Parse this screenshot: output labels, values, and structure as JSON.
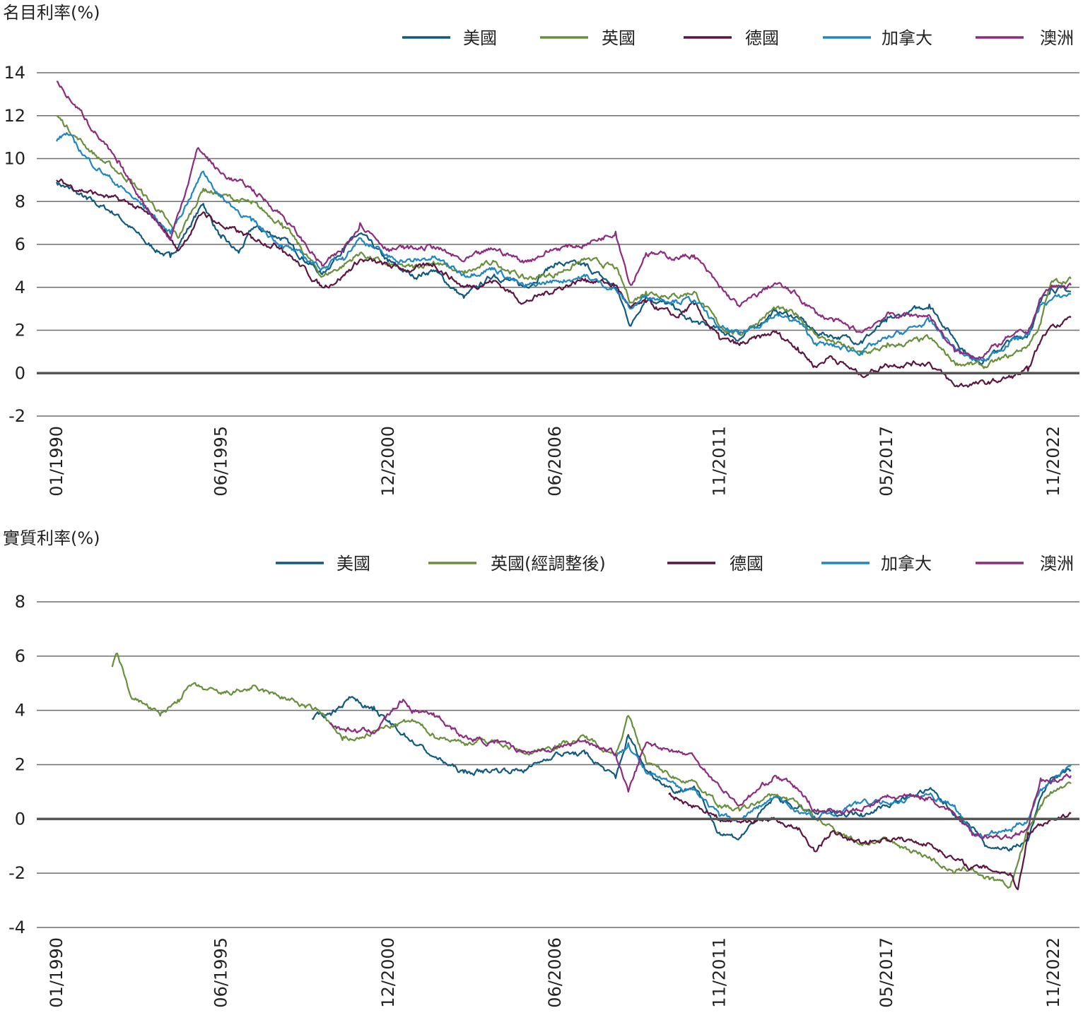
{
  "chart_data": [
    {
      "type": "line",
      "ylabel": "名目利率(%)",
      "ylim": [
        -2,
        14
      ],
      "yticks": [
        -2,
        0,
        2,
        4,
        6,
        8,
        10,
        12,
        14
      ],
      "xlim": [
        "1990-01",
        "2023-06"
      ],
      "xticks": [
        "01/1990",
        "06/1995",
        "12/2000",
        "06/2006",
        "11/2011",
        "05/2017",
        "11/2022"
      ],
      "grid": true,
      "legend_position": "top-right",
      "series": [
        {
          "name": "美國",
          "color": "#0f5a7e",
          "x": [
            "1990-01",
            "1990-06",
            "1991-01",
            "1992-01",
            "1993-01",
            "1993-10",
            "1994-11",
            "1995-06",
            "1996-01",
            "1996-07",
            "1997-06",
            "1998-10",
            "1999-06",
            "2000-01",
            "2000-12",
            "2001-10",
            "2002-06",
            "2003-06",
            "2004-06",
            "2005-06",
            "2006-06",
            "2007-06",
            "2008-06",
            "2008-12",
            "2009-06",
            "2010-06",
            "2010-10",
            "2011-11",
            "2012-07",
            "2013-09",
            "2014-06",
            "2015-01",
            "2016-07",
            "2017-05",
            "2018-10",
            "2019-08",
            "2020-03",
            "2020-08",
            "2021-06",
            "2022-01",
            "2022-06",
            "2022-10",
            "2023-06"
          ],
          "values": [
            8.9,
            8.6,
            8.1,
            7.4,
            6.0,
            5.4,
            7.9,
            6.3,
            5.6,
            6.8,
            6.3,
            4.6,
            5.8,
            6.5,
            5.2,
            4.5,
            4.8,
            3.5,
            4.6,
            4.0,
            5.1,
            5.0,
            4.0,
            2.2,
            3.6,
            3.0,
            2.5,
            2.0,
            1.6,
            2.9,
            2.6,
            1.9,
            1.5,
            2.4,
            3.2,
            1.6,
            0.7,
            0.6,
            1.5,
            1.8,
            3.3,
            4.0,
            3.8
          ]
        },
        {
          "name": "英國",
          "color": "#6a8f3c",
          "x": [
            "1990-01",
            "1990-09",
            "1991-06",
            "1992-06",
            "1993-06",
            "1994-01",
            "1994-11",
            "1995-06",
            "1996-06",
            "1997-06",
            "1998-10",
            "1999-06",
            "2000-01",
            "2000-12",
            "2001-10",
            "2002-06",
            "2003-06",
            "2004-06",
            "2005-06",
            "2006-06",
            "2007-06",
            "2008-06",
            "2008-12",
            "2009-06",
            "2010-06",
            "2011-01",
            "2011-11",
            "2012-07",
            "2013-09",
            "2014-06",
            "2015-01",
            "2016-07",
            "2017-05",
            "2018-10",
            "2019-08",
            "2020-03",
            "2020-08",
            "2021-06",
            "2022-01",
            "2022-06",
            "2022-10",
            "2023-06"
          ],
          "values": [
            12.0,
            11.0,
            10.0,
            9.0,
            7.5,
            6.3,
            8.6,
            8.3,
            7.9,
            7.0,
            4.5,
            5.0,
            5.6,
            5.0,
            4.9,
            5.2,
            4.6,
            5.2,
            4.4,
            4.6,
            5.3,
            4.9,
            3.3,
            3.8,
            3.6,
            3.8,
            2.2,
            1.8,
            3.0,
            2.7,
            1.8,
            0.9,
            1.2,
            1.6,
            0.5,
            0.4,
            0.3,
            0.8,
            1.3,
            2.3,
            4.2,
            4.4
          ]
        },
        {
          "name": "德國",
          "color": "#5c1540",
          "x": [
            "1990-01",
            "1990-07",
            "1991-06",
            "1992-06",
            "1993-06",
            "1994-01",
            "1994-11",
            "1995-06",
            "1996-06",
            "1997-06",
            "1998-10",
            "1999-06",
            "2000-01",
            "2000-12",
            "2001-10",
            "2002-06",
            "2003-06",
            "2004-06",
            "2005-06",
            "2006-06",
            "2007-06",
            "2008-06",
            "2008-12",
            "2009-06",
            "2010-06",
            "2011-01",
            "2011-11",
            "2012-07",
            "2013-09",
            "2014-06",
            "2015-01",
            "2015-07",
            "2016-07",
            "2017-05",
            "2018-10",
            "2019-08",
            "2020-03",
            "2020-08",
            "2021-06",
            "2022-01",
            "2022-06",
            "2022-10",
            "2023-06"
          ],
          "values": [
            9.0,
            8.7,
            8.3,
            7.9,
            7.0,
            5.7,
            7.5,
            6.9,
            6.3,
            5.9,
            4.0,
            4.5,
            5.3,
            5.0,
            4.8,
            5.1,
            4.0,
            4.3,
            3.3,
            3.9,
            4.4,
            4.1,
            3.0,
            3.3,
            2.6,
            3.2,
            1.6,
            1.3,
            1.9,
            1.2,
            0.3,
            0.8,
            -0.1,
            0.4,
            0.5,
            -0.6,
            -0.5,
            -0.5,
            -0.2,
            0.1,
            1.5,
            2.2,
            2.6
          ]
        },
        {
          "name": "加拿大",
          "color": "#1f86c0",
          "x": [
            "1990-01",
            "1990-05",
            "1991-01",
            "1992-01",
            "1993-01",
            "1993-10",
            "1994-11",
            "1995-06",
            "1996-06",
            "1997-06",
            "1998-10",
            "1999-06",
            "2000-01",
            "2000-12",
            "2001-10",
            "2002-06",
            "2003-06",
            "2004-06",
            "2005-06",
            "2006-06",
            "2007-06",
            "2008-06",
            "2008-12",
            "2009-06",
            "2010-06",
            "2011-01",
            "2011-11",
            "2012-07",
            "2013-09",
            "2014-06",
            "2015-01",
            "2016-07",
            "2017-05",
            "2018-10",
            "2019-08",
            "2020-03",
            "2020-08",
            "2021-06",
            "2022-01",
            "2022-06",
            "2022-10",
            "2023-06"
          ],
          "values": [
            10.8,
            11.2,
            10.0,
            8.8,
            7.6,
            6.5,
            9.4,
            8.2,
            7.1,
            6.0,
            4.9,
            5.4,
            6.3,
            5.4,
            5.2,
            5.4,
            4.6,
            4.9,
            4.0,
            4.3,
            4.5,
            3.9,
            3.0,
            3.6,
            3.4,
            3.4,
            2.1,
            1.8,
            2.7,
            2.4,
            1.4,
            1.0,
            1.6,
            2.4,
            1.2,
            0.6,
            0.6,
            1.5,
            1.8,
            3.2,
            3.4,
            3.7
          ]
        },
        {
          "name": "澳洲",
          "color": "#8d2b7e",
          "x": [
            "1990-01",
            "1990-06",
            "1991-01",
            "1992-01",
            "1993-01",
            "1993-10",
            "1994-09",
            "1995-06",
            "1996-06",
            "1997-06",
            "1998-10",
            "1999-06",
            "2000-01",
            "2000-12",
            "2001-10",
            "2002-06",
            "2003-06",
            "2004-06",
            "2005-06",
            "2006-06",
            "2007-06",
            "2008-06",
            "2008-12",
            "2009-06",
            "2010-06",
            "2011-01",
            "2011-11",
            "2012-07",
            "2013-09",
            "2014-06",
            "2015-01",
            "2016-07",
            "2017-05",
            "2018-10",
            "2019-08",
            "2020-03",
            "2020-08",
            "2021-06",
            "2022-01",
            "2022-06",
            "2022-10",
            "2023-06"
          ],
          "values": [
            13.6,
            12.8,
            11.8,
            9.8,
            7.7,
            6.2,
            10.5,
            9.3,
            8.6,
            7.4,
            5.0,
            5.7,
            7.0,
            5.8,
            5.8,
            5.9,
            5.2,
            5.8,
            5.2,
            5.8,
            6.0,
            6.6,
            4.1,
            5.6,
            5.4,
            5.5,
            4.0,
            3.1,
            4.2,
            3.6,
            2.8,
            1.9,
            2.7,
            2.7,
            1.0,
            0.8,
            0.9,
            1.7,
            1.9,
            3.5,
            4.0,
            4.1
          ]
        }
      ]
    },
    {
      "type": "line",
      "ylabel": "實質利率(%)",
      "ylim": [
        -4,
        8
      ],
      "yticks": [
        -4,
        -2,
        0,
        2,
        4,
        6,
        8
      ],
      "xlim": [
        "1990-01",
        "2023-06"
      ],
      "xticks": [
        "01/1990",
        "06/1995",
        "12/2000",
        "06/2006",
        "11/2011",
        "05/2017",
        "11/2022"
      ],
      "grid": true,
      "legend_position": "top-right",
      "series": [
        {
          "name": "美國",
          "color": "#0f5a7e",
          "x": [
            "1998-06",
            "1999-01",
            "1999-10",
            "2000-06",
            "2001-01",
            "2002-06",
            "2003-06",
            "2004-06",
            "2005-06",
            "2006-06",
            "2007-06",
            "2008-06",
            "2008-11",
            "2009-06",
            "2010-06",
            "2011-01",
            "2011-11",
            "2012-07",
            "2013-09",
            "2014-06",
            "2015-01",
            "2016-07",
            "2017-05",
            "2018-10",
            "2019-08",
            "2020-03",
            "2020-08",
            "2021-06",
            "2022-01",
            "2022-06",
            "2022-10",
            "2023-06"
          ],
          "values": [
            3.7,
            3.9,
            4.5,
            4.0,
            3.5,
            2.3,
            1.7,
            1.8,
            1.8,
            2.4,
            2.4,
            1.5,
            3.1,
            1.8,
            1.0,
            1.2,
            -0.5,
            -0.7,
            0.8,
            0.4,
            0.2,
            0.2,
            0.5,
            1.1,
            0.2,
            -0.3,
            -1.0,
            -1.1,
            -0.8,
            0.8,
            1.5,
            1.8
          ]
        },
        {
          "name": "英國(經調整後)",
          "color": "#6a8f3c",
          "x": [
            "1991-11",
            "1992-01",
            "1992-06",
            "1993-06",
            "1994-01",
            "1994-06",
            "1995-06",
            "1996-06",
            "1997-06",
            "1998-10",
            "1999-06",
            "2000-01",
            "2000-12",
            "2001-10",
            "2002-06",
            "2003-06",
            "2004-06",
            "2005-06",
            "2006-06",
            "2007-06",
            "2008-06",
            "2008-11",
            "2009-06",
            "2010-06",
            "2011-01",
            "2011-11",
            "2012-07",
            "2013-09",
            "2014-06",
            "2015-01",
            "2016-07",
            "2017-05",
            "2018-10",
            "2019-08",
            "2020-03",
            "2020-08",
            "2021-06",
            "2022-01",
            "2022-06",
            "2022-10",
            "2023-06"
          ],
          "values": [
            5.6,
            6.1,
            4.6,
            3.8,
            4.4,
            4.9,
            4.6,
            4.8,
            4.5,
            3.9,
            2.9,
            3.0,
            3.4,
            3.6,
            3.1,
            2.8,
            2.9,
            2.4,
            2.7,
            3.0,
            2.4,
            3.8,
            2.1,
            1.5,
            1.4,
            0.5,
            0.3,
            0.9,
            0.6,
            0.0,
            -0.9,
            -0.8,
            -1.4,
            -2.0,
            -1.8,
            -2.2,
            -2.5,
            -0.4,
            0.5,
            1.0,
            1.3
          ]
        },
        {
          "name": "德國",
          "color": "#5c1540",
          "x": [
            "2010-03",
            "2010-10",
            "2011-06",
            "2011-11",
            "2012-07",
            "2013-09",
            "2014-06",
            "2015-01",
            "2015-07",
            "2016-07",
            "2017-05",
            "2018-10",
            "2019-08",
            "2020-03",
            "2020-08",
            "2021-06",
            "2021-09",
            "2022-01",
            "2022-06",
            "2022-10",
            "2023-06"
          ],
          "values": [
            0.9,
            0.6,
            0.3,
            0.0,
            -0.1,
            0.0,
            -0.4,
            -1.2,
            -0.5,
            -0.9,
            -0.7,
            -0.9,
            -1.5,
            -1.8,
            -1.8,
            -2.0,
            -2.6,
            -0.5,
            -0.2,
            0.0,
            0.2
          ]
        },
        {
          "name": "加拿大",
          "color": "#1f86c0",
          "x": [
            "2008-06",
            "2008-11",
            "2009-06",
            "2010-06",
            "2011-01",
            "2011-11",
            "2012-07",
            "2013-09",
            "2014-06",
            "2015-01",
            "2016-07",
            "2017-05",
            "2018-10",
            "2019-08",
            "2020-03",
            "2020-08",
            "2021-06",
            "2022-01",
            "2022-06",
            "2022-10",
            "2023-06"
          ],
          "values": [
            2.3,
            2.8,
            1.7,
            1.2,
            1.1,
            0.1,
            0.0,
            0.8,
            0.3,
            0.0,
            0.6,
            0.6,
            0.9,
            0.5,
            -0.5,
            -0.6,
            -0.4,
            0.0,
            1.1,
            1.4,
            2.0
          ]
        },
        {
          "name": "澳洲",
          "color": "#8d2b7e",
          "x": [
            "1999-01",
            "1999-06",
            "2000-06",
            "2001-06",
            "2001-10",
            "2002-06",
            "2003-06",
            "2004-06",
            "2005-06",
            "2006-06",
            "2007-06",
            "2008-06",
            "2008-11",
            "2009-06",
            "2010-06",
            "2011-01",
            "2011-11",
            "2012-07",
            "2013-09",
            "2014-06",
            "2015-01",
            "2016-07",
            "2017-05",
            "2018-10",
            "2019-08",
            "2020-03",
            "2020-08",
            "2021-06",
            "2022-01",
            "2022-06",
            "2022-10",
            "2023-06"
          ],
          "values": [
            3.5,
            3.3,
            3.2,
            4.4,
            4.0,
            3.9,
            3.0,
            2.8,
            2.5,
            2.6,
            2.9,
            2.4,
            1.0,
            2.8,
            2.5,
            2.3,
            1.2,
            0.5,
            1.6,
            1.1,
            0.3,
            0.3,
            0.8,
            0.8,
            0.2,
            -0.6,
            -0.6,
            -0.7,
            -0.3,
            1.5,
            1.3,
            1.6
          ]
        }
      ]
    }
  ]
}
